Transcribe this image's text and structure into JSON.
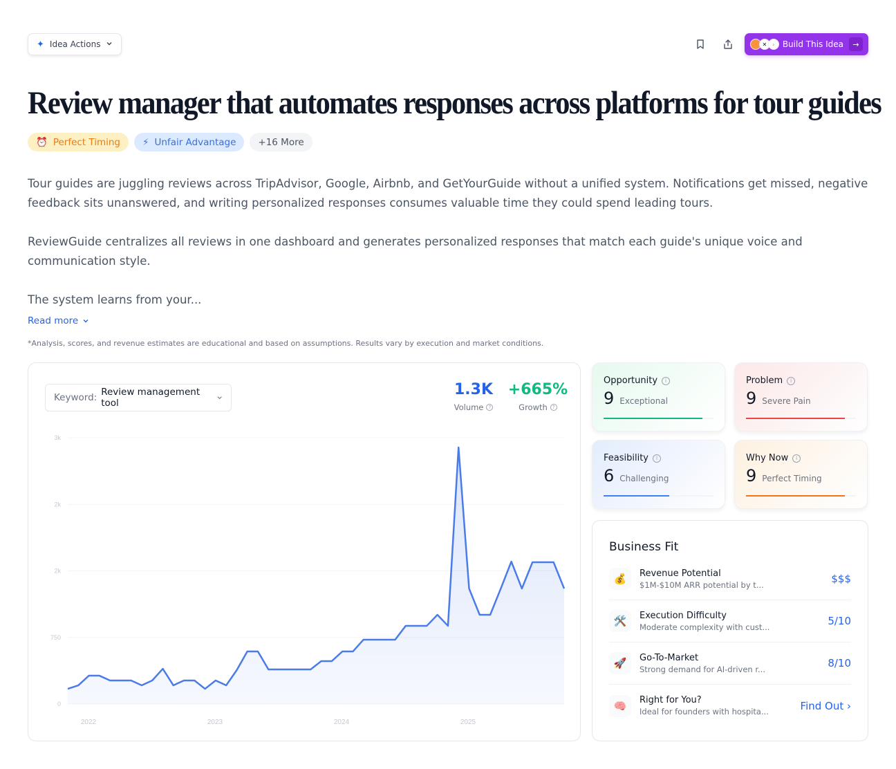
{
  "topbar": {
    "idea_actions_label": "Idea Actions",
    "build_label": "Build This Idea",
    "build_color": "#9333ea"
  },
  "title": "Review manager that automates responses across platforms for tour guides",
  "tags": [
    {
      "icon": "⏰",
      "label": "Perfect Timing"
    },
    {
      "icon": "⚡",
      "label": "Unfair Advantage"
    },
    {
      "label": "+16 More"
    }
  ],
  "description": {
    "p1": "Tour guides are juggling reviews across TripAdvisor, Google, Airbnb, and GetYourGuide without a unified system. Notifications get missed, negative feedback sits unanswered, and writing personalized responses consumes valuable time they could spend leading tours.",
    "p2": "ReviewGuide centralizes all reviews in one dashboard and generates personalized responses that match each guide's unique voice and communication style.",
    "p3": "The system learns from your...",
    "read_more": "Read more"
  },
  "disclaimer": "*Analysis, scores, and revenue estimates are educational and based on assumptions. Results vary by execution and market conditions.",
  "trend": {
    "keyword_label": "Keyword:",
    "keyword_value": "Review management tool",
    "volume": "1.3K",
    "volume_label": "Volume",
    "growth": "+665%",
    "growth_label": "Growth"
  },
  "chart_data": {
    "type": "area",
    "title": "",
    "xlabel": "",
    "ylabel": "",
    "ylim": [
      0,
      3000
    ],
    "y_ticks": [
      "0",
      "750",
      "2k",
      "2k",
      "3k"
    ],
    "y_tick_values": [
      0,
      750,
      1500,
      2250,
      3000
    ],
    "x_ticks": [
      "2022",
      "2023",
      "2024",
      "2025"
    ],
    "grid": true,
    "color": "#4a7be8",
    "values": [
      171,
      210,
      319,
      319,
      265,
      265,
      265,
      210,
      265,
      397,
      210,
      265,
      265,
      171,
      265,
      210,
      382,
      592,
      592,
      390,
      390,
      390,
      390,
      390,
      483,
      483,
      592,
      592,
      725,
      725,
      725,
      725,
      881,
      881,
      881,
      1005,
      881,
      2891,
      1301,
      1005,
      1005,
      1301,
      1605,
      1301,
      1597,
      1597,
      1597,
      1301
    ]
  },
  "scores": [
    {
      "name": "Opportunity",
      "score": "9",
      "label": "Exceptional",
      "color": "#10b981",
      "pct": 90
    },
    {
      "name": "Problem",
      "score": "9",
      "label": "Severe Pain",
      "color": "#ef4444",
      "pct": 90
    },
    {
      "name": "Feasibility",
      "score": "6",
      "label": "Challenging",
      "color": "#3b82f6",
      "pct": 60
    },
    {
      "name": "Why Now",
      "score": "9",
      "label": "Perfect Timing",
      "color": "#f97316",
      "pct": 90
    }
  ],
  "business_fit": {
    "title": "Business Fit",
    "rows": [
      {
        "icon": "💰",
        "name": "Revenue Potential",
        "desc": "$1M-$10M ARR potential by t...",
        "value": "$$$"
      },
      {
        "icon": "🛠️",
        "name": "Execution Difficulty",
        "desc": "Moderate complexity with cust...",
        "value": "5/10"
      },
      {
        "icon": "🚀",
        "name": "Go-To-Market",
        "desc": "Strong demand for AI-driven r...",
        "value": "8/10"
      },
      {
        "icon": "🧠",
        "name": "Right for You?",
        "desc": "Ideal for founders with hospita...",
        "value": "Find Out ›"
      }
    ]
  }
}
